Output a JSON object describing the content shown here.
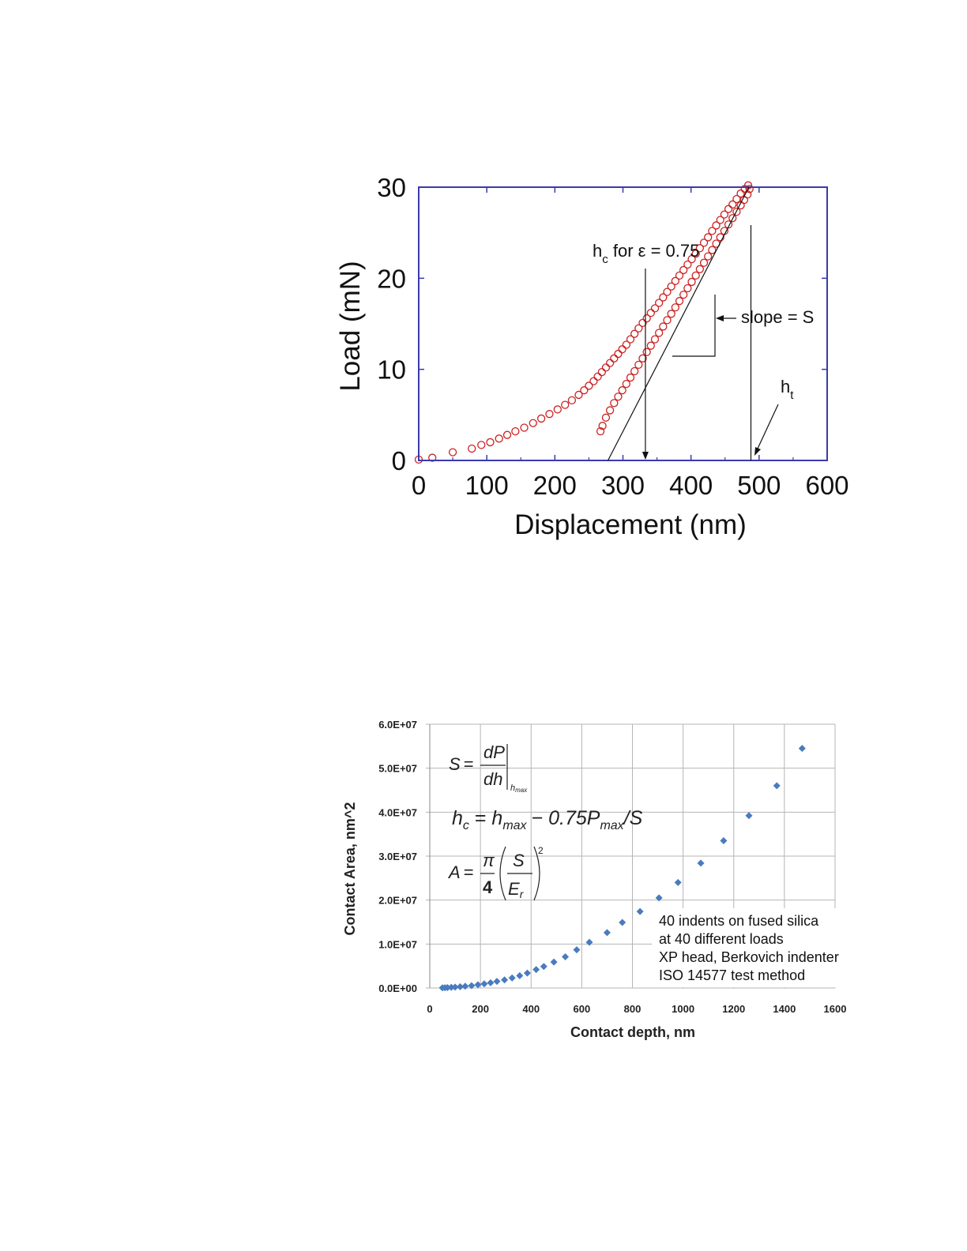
{
  "chart_data": [
    {
      "type": "scatter",
      "xlabel": "Displacement (nm)",
      "ylabel": "Load (mN)",
      "xlim": [
        0,
        600
      ],
      "ylim": [
        0,
        30
      ],
      "xticks": [
        "0",
        "100",
        "200",
        "300",
        "400",
        "500",
        "600"
      ],
      "yticks": [
        "0",
        "10",
        "20",
        "30"
      ],
      "grid": false,
      "marker_color": "#cc2222",
      "axis_color": "#3a3ab0",
      "series": [
        {
          "marker": "open-circle",
          "points": [
            [
              0,
              0.1
            ],
            [
              20,
              0.3
            ],
            [
              50,
              0.9
            ],
            [
              78,
              1.3
            ],
            [
              92,
              1.7
            ],
            [
              105,
              2.0
            ],
            [
              118,
              2.4
            ],
            [
              130,
              2.8
            ],
            [
              142,
              3.2
            ],
            [
              155,
              3.6
            ],
            [
              168,
              4.1
            ],
            [
              180,
              4.6
            ],
            [
              192,
              5.1
            ],
            [
              204,
              5.6
            ],
            [
              215,
              6.1
            ],
            [
              225,
              6.6
            ],
            [
              235,
              7.2
            ],
            [
              243,
              7.7
            ],
            [
              250,
              8.2
            ],
            [
              257,
              8.7
            ],
            [
              263,
              9.2
            ],
            [
              269,
              9.7
            ],
            [
              275,
              10.2
            ],
            [
              281,
              10.7
            ],
            [
              287,
              11.2
            ],
            [
              293,
              11.7
            ],
            [
              299,
              12.2
            ],
            [
              305,
              12.7
            ],
            [
              311,
              13.3
            ],
            [
              317,
              13.9
            ],
            [
              323,
              14.5
            ],
            [
              329,
              15.1
            ],
            [
              335,
              15.6
            ],
            [
              341,
              16.2
            ],
            [
              347,
              16.7
            ],
            [
              353,
              17.3
            ],
            [
              359,
              17.9
            ],
            [
              365,
              18.5
            ],
            [
              371,
              19.1
            ],
            [
              377,
              19.7
            ],
            [
              383,
              20.3
            ],
            [
              389,
              20.9
            ],
            [
              395,
              21.5
            ],
            [
              401,
              22.1
            ],
            [
              407,
              22.7
            ],
            [
              413,
              23.3
            ],
            [
              419,
              23.9
            ],
            [
              425,
              24.5
            ],
            [
              431,
              25.2
            ],
            [
              437,
              25.8
            ],
            [
              443,
              26.4
            ],
            [
              449,
              27.0
            ],
            [
              455,
              27.6
            ],
            [
              461,
              28.1
            ],
            [
              467,
              28.7
            ],
            [
              473,
              29.3
            ],
            [
              479,
              29.8
            ],
            [
              484,
              30.2
            ],
            [
              486,
              29.8
            ],
            [
              483,
              29.2
            ],
            [
              478,
              28.6
            ],
            [
              473,
              28.0
            ],
            [
              467,
              27.3
            ],
            [
              461,
              26.6
            ],
            [
              455,
              25.9
            ],
            [
              449,
              25.2
            ],
            [
              443,
              24.5
            ],
            [
              437,
              23.8
            ],
            [
              431,
              23.1
            ],
            [
              425,
              22.4
            ],
            [
              419,
              21.7
            ],
            [
              413,
              21.0
            ],
            [
              407,
              20.3
            ],
            [
              401,
              19.6
            ],
            [
              395,
              18.9
            ],
            [
              389,
              18.2
            ],
            [
              383,
              17.5
            ],
            [
              377,
              16.8
            ],
            [
              371,
              16.1
            ],
            [
              365,
              15.4
            ],
            [
              359,
              14.7
            ],
            [
              353,
              14.0
            ],
            [
              347,
              13.3
            ],
            [
              341,
              12.6
            ],
            [
              335,
              11.9
            ],
            [
              329,
              11.2
            ],
            [
              323,
              10.5
            ],
            [
              317,
              9.8
            ],
            [
              311,
              9.1
            ],
            [
              305,
              8.4
            ],
            [
              299,
              7.7
            ],
            [
              293,
              7.0
            ],
            [
              287,
              6.3
            ],
            [
              281,
              5.5
            ],
            [
              275,
              4.7
            ],
            [
              270,
              3.8
            ],
            [
              267,
              3.2
            ]
          ]
        }
      ],
      "annotations": {
        "hc": {
          "main": "h",
          "sub": "c",
          "rest": " for ε = 0.75",
          "x": 333
        },
        "slope": {
          "label": "slope = S",
          "tangent": [
            [
              278,
              0
            ],
            [
              485,
              30
            ]
          ]
        },
        "ht": {
          "main": "h",
          "sub": "t",
          "x": 490
        }
      }
    },
    {
      "type": "scatter",
      "xlabel": "Contact depth, nm",
      "ylabel": "Contact Area, nm^2",
      "xlim": [
        0,
        1600
      ],
      "ylim": [
        0,
        60000000
      ],
      "xticks": [
        "0",
        "200",
        "400",
        "600",
        "800",
        "1000",
        "1200",
        "1400",
        "1600"
      ],
      "yticks": [
        "0.0E+00",
        "1.0E+07",
        "2.0E+07",
        "3.0E+07",
        "4.0E+07",
        "5.0E+07",
        "6.0E+07"
      ],
      "grid": true,
      "marker_color": "#4a7bbf",
      "series": [
        {
          "marker": "diamond",
          "points": [
            [
              50,
              50000
            ],
            [
              60,
              70000
            ],
            [
              70,
              100000
            ],
            [
              85,
              150000
            ],
            [
              100,
              200000
            ],
            [
              120,
              300000
            ],
            [
              140,
              400000
            ],
            [
              165,
              550000
            ],
            [
              190,
              750000
            ],
            [
              215,
              950000
            ],
            [
              240,
              1200000
            ],
            [
              265,
              1500000
            ],
            [
              295,
              1850000
            ],
            [
              325,
              2300000
            ],
            [
              355,
              2800000
            ],
            [
              385,
              3400000
            ],
            [
              420,
              4200000
            ],
            [
              450,
              4900000
            ],
            [
              490,
              5900000
            ],
            [
              535,
              7100000
            ],
            [
              580,
              8700000
            ],
            [
              630,
              10400000
            ],
            [
              700,
              12600000
            ],
            [
              760,
              14900000
            ],
            [
              830,
              17400000
            ],
            [
              905,
              20500000
            ],
            [
              980,
              24000000
            ],
            [
              1070,
              28400000
            ],
            [
              1160,
              33500000
            ],
            [
              1260,
              39200000
            ],
            [
              1370,
              46000000
            ],
            [
              1470,
              54500000
            ]
          ]
        }
      ],
      "formulas": {
        "f1": {
          "lhs": "S",
          "num": "dP",
          "den": "dh",
          "sub": "h",
          "subsub": "max"
        },
        "f2": {
          "h": "h",
          "c": "c",
          "hmax": "h",
          "max": "max",
          "op": "− 0.75P",
          "rest": "/S"
        },
        "f3": {
          "lhs": "A",
          "pi": "π",
          "four": "4",
          "S": "S",
          "Er": "E",
          "r": "r",
          "exp": "2"
        }
      },
      "note": [
        "40 indents on fused silica",
        "at 40 different loads",
        "XP head, Berkovich indenter",
        "ISO 14577 test method"
      ]
    }
  ]
}
